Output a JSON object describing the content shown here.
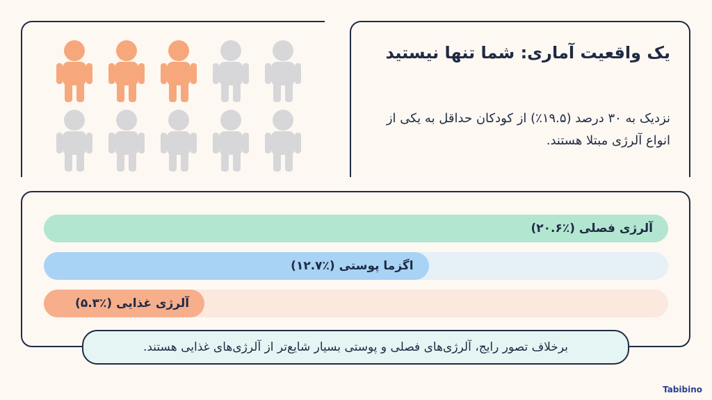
{
  "heading": "یک واقعیت آماری: شما تنها نیستید",
  "body": "نزدیک به ۳۰ درصد (۱۹.۵٪) از کودکان حداقل به یکی از انواع آلرژی مبتلا هستند.",
  "note": "برخلاف تصور رایج، آلرژی‌های فصلی و پوستی بسیار شایع‌تر از آلرژی‌های غذایی هستند.",
  "logo": "Tabibino",
  "chart_data": {
    "type": "bar",
    "categories": [
      "آلرژی فصلی",
      "اگزما پوستی",
      "آلرژی غذایی"
    ],
    "values": [
      20.6,
      12.7,
      5.3
    ],
    "value_labels": [
      "(۲۰.۶٪)",
      "(۱۲.۷٪)",
      "(۵.۳٪)"
    ],
    "colors": [
      "#b3e6d0",
      "#a9d3f5",
      "#f6ae8b"
    ],
    "track_colors": [
      "#b3e6d0",
      "#e6f0f7",
      "#fbe8df"
    ],
    "xlim": [
      0,
      20.6
    ]
  }
}
